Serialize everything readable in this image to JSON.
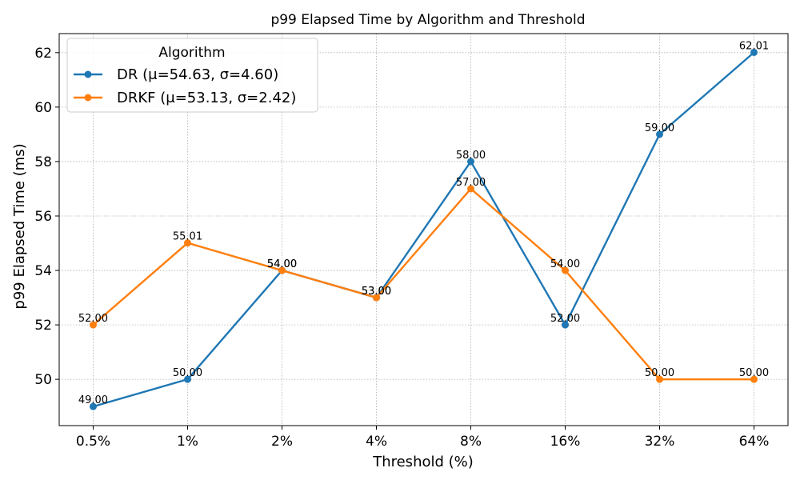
{
  "chart_data": {
    "type": "line",
    "title": "p99 Elapsed Time by Algorithm and Threshold",
    "xlabel": "Threshold (%)",
    "ylabel": "p99 Elapsed Time (ms)",
    "categories": [
      "0.5%",
      "1%",
      "2%",
      "4%",
      "8%",
      "16%",
      "32%",
      "64%"
    ],
    "ylim": [
      48.3,
      62.7
    ],
    "yticks": [
      50,
      52,
      54,
      56,
      58,
      60,
      62
    ],
    "grid": true,
    "legend": {
      "title": "Algorithm",
      "position": "top-left"
    },
    "series": [
      {
        "name": "DR (μ=54.63, σ=4.60)",
        "color": "#1f77b4",
        "values": [
          49.0,
          50.0,
          54.0,
          53.0,
          58.0,
          52.0,
          59.0,
          62.01
        ],
        "labels": [
          "49.00",
          "50.00",
          "54.00",
          "53.00",
          "58.00",
          "52.00",
          "59.00",
          "62.01"
        ]
      },
      {
        "name": "DRKF (μ=53.13, σ=2.42)",
        "color": "#ff7f0e",
        "values": [
          52.0,
          55.01,
          54.0,
          53.0,
          57.0,
          54.0,
          50.0,
          50.0
        ],
        "labels": [
          "52.00",
          "55.01",
          "54.00",
          "53.00",
          "57.00",
          "54.00",
          "50.00",
          "50.00"
        ]
      }
    ]
  }
}
